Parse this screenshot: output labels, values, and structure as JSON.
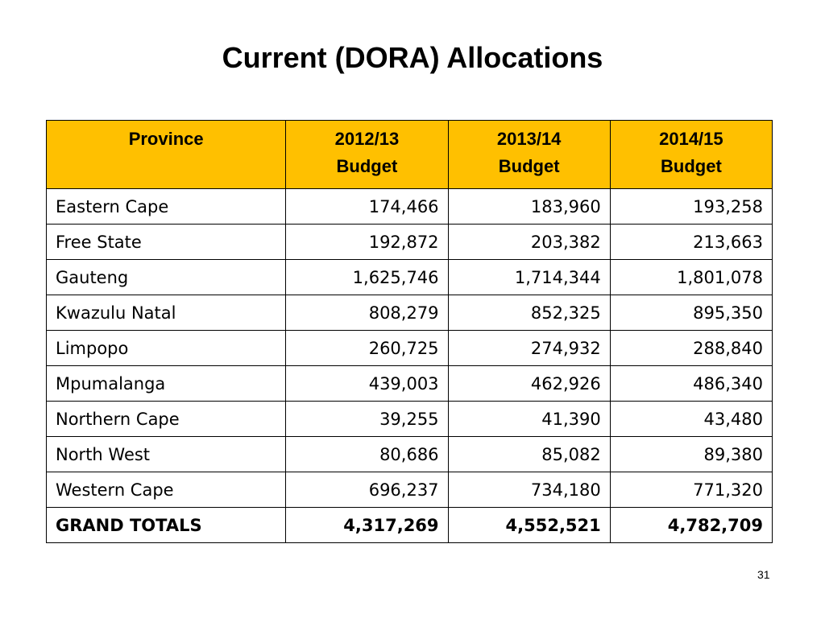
{
  "slide": {
    "title": "Current (DORA) Allocations",
    "page_number": "31"
  },
  "table": {
    "header_color": "#FFC000",
    "columns": [
      {
        "line1": "Province",
        "line2": ""
      },
      {
        "line1": "2012/13",
        "line2": "Budget"
      },
      {
        "line1": "2013/14",
        "line2": "Budget"
      },
      {
        "line1": "2014/15",
        "line2": "Budget"
      }
    ],
    "rows": [
      {
        "province": "Eastern Cape",
        "y2012_13": "174,466",
        "y2013_14": "183,960",
        "y2014_15": "193,258"
      },
      {
        "province": "Free State",
        "y2012_13": "192,872",
        "y2013_14": "203,382",
        "y2014_15": "213,663"
      },
      {
        "province": "Gauteng",
        "y2012_13": "1,625,746",
        "y2013_14": "1,714,344",
        "y2014_15": "1,801,078"
      },
      {
        "province": "Kwazulu Natal",
        "y2012_13": "808,279",
        "y2013_14": "852,325",
        "y2014_15": "895,350"
      },
      {
        "province": "Limpopo",
        "y2012_13": "260,725",
        "y2013_14": "274,932",
        "y2014_15": "288,840"
      },
      {
        "province": "Mpumalanga",
        "y2012_13": "439,003",
        "y2013_14": "462,926",
        "y2014_15": "486,340"
      },
      {
        "province": "Northern Cape",
        "y2012_13": "39,255",
        "y2013_14": "41,390",
        "y2014_15": "43,480"
      },
      {
        "province": "North West",
        "y2012_13": "80,686",
        "y2013_14": "85,082",
        "y2014_15": "89,380"
      },
      {
        "province": "Western Cape",
        "y2012_13": "696,237",
        "y2013_14": "734,180",
        "y2014_15": "771,320"
      },
      {
        "province": "GRAND TOTALS",
        "y2012_13": "4,317,269",
        "y2013_14": "4,552,521",
        "y2014_15": "4,782,709"
      }
    ]
  }
}
